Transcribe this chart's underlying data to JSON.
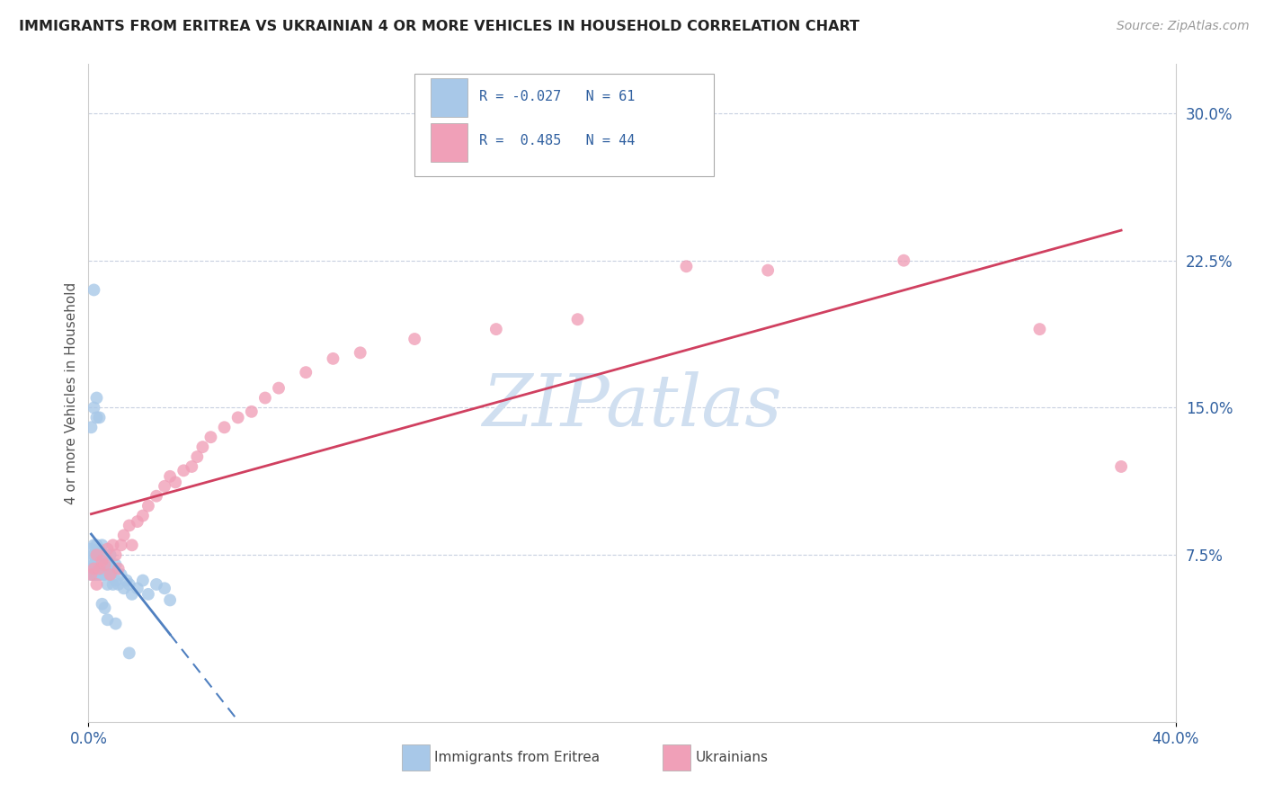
{
  "title": "IMMIGRANTS FROM ERITREA VS UKRAINIAN 4 OR MORE VEHICLES IN HOUSEHOLD CORRELATION CHART",
  "source": "Source: ZipAtlas.com",
  "ylabel": "4 or more Vehicles in Household",
  "ytick_labels": [
    "7.5%",
    "15.0%",
    "22.5%",
    "30.0%"
  ],
  "ytick_values": [
    0.075,
    0.15,
    0.225,
    0.3
  ],
  "xlim": [
    0.0,
    0.4
  ],
  "ylim": [
    -0.01,
    0.325
  ],
  "legend_labels": [
    "Immigrants from Eritrea",
    "Ukrainians"
  ],
  "r_eritrea": -0.027,
  "n_eritrea": 61,
  "r_ukrainian": 0.485,
  "n_ukrainian": 44,
  "color_eritrea": "#a8c8e8",
  "color_ukrainian": "#f0a0b8",
  "line_color_eritrea": "#5080c0",
  "line_color_ukrainian": "#d04060",
  "watermark_color": "#d0dff0",
  "background_color": "#ffffff",
  "eritrea_x": [
    0.001,
    0.001,
    0.001,
    0.001,
    0.002,
    0.002,
    0.002,
    0.002,
    0.002,
    0.003,
    0.003,
    0.003,
    0.003,
    0.003,
    0.003,
    0.004,
    0.004,
    0.004,
    0.004,
    0.004,
    0.005,
    0.005,
    0.005,
    0.005,
    0.005,
    0.006,
    0.006,
    0.006,
    0.007,
    0.007,
    0.007,
    0.008,
    0.008,
    0.008,
    0.009,
    0.009,
    0.01,
    0.01,
    0.011,
    0.012,
    0.013,
    0.014,
    0.015,
    0.016,
    0.018,
    0.02,
    0.022,
    0.025,
    0.028,
    0.03,
    0.001,
    0.002,
    0.002,
    0.003,
    0.003,
    0.004,
    0.005,
    0.006,
    0.007,
    0.01,
    0.015
  ],
  "eritrea_y": [
    0.068,
    0.072,
    0.078,
    0.065,
    0.07,
    0.075,
    0.068,
    0.08,
    0.065,
    0.072,
    0.075,
    0.068,
    0.08,
    0.065,
    0.07,
    0.068,
    0.075,
    0.07,
    0.065,
    0.078,
    0.07,
    0.075,
    0.065,
    0.068,
    0.08,
    0.065,
    0.07,
    0.075,
    0.068,
    0.072,
    0.06,
    0.065,
    0.07,
    0.075,
    0.06,
    0.068,
    0.062,
    0.07,
    0.06,
    0.065,
    0.058,
    0.062,
    0.06,
    0.055,
    0.058,
    0.062,
    0.055,
    0.06,
    0.058,
    0.052,
    0.14,
    0.15,
    0.21,
    0.155,
    0.145,
    0.145,
    0.05,
    0.048,
    0.042,
    0.04,
    0.025
  ],
  "ukrainian_x": [
    0.001,
    0.002,
    0.003,
    0.003,
    0.004,
    0.005,
    0.006,
    0.007,
    0.008,
    0.009,
    0.01,
    0.011,
    0.012,
    0.013,
    0.015,
    0.016,
    0.018,
    0.02,
    0.022,
    0.025,
    0.028,
    0.03,
    0.032,
    0.035,
    0.038,
    0.04,
    0.042,
    0.045,
    0.05,
    0.055,
    0.06,
    0.065,
    0.07,
    0.08,
    0.09,
    0.1,
    0.12,
    0.15,
    0.18,
    0.22,
    0.25,
    0.3,
    0.35,
    0.38
  ],
  "ukrainian_y": [
    0.065,
    0.068,
    0.06,
    0.075,
    0.068,
    0.072,
    0.07,
    0.078,
    0.065,
    0.08,
    0.075,
    0.068,
    0.08,
    0.085,
    0.09,
    0.08,
    0.092,
    0.095,
    0.1,
    0.105,
    0.11,
    0.115,
    0.112,
    0.118,
    0.12,
    0.125,
    0.13,
    0.135,
    0.14,
    0.145,
    0.148,
    0.155,
    0.16,
    0.168,
    0.175,
    0.178,
    0.185,
    0.19,
    0.195,
    0.222,
    0.22,
    0.225,
    0.19,
    0.12
  ]
}
